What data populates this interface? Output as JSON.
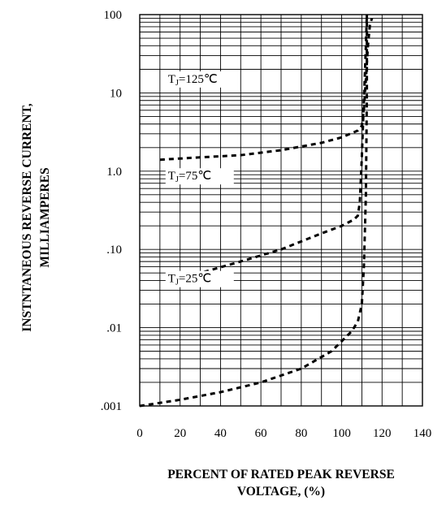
{
  "chart_data": {
    "type": "line",
    "xlabel": [
      "PERCENT OF RATED PEAK REVERSE",
      "VOLTAGE, (%)"
    ],
    "ylabel": [
      "INSTNTANEOUS REVERSE CURRENT,",
      "MILLIAMPERES"
    ],
    "x_ticks": [
      "0",
      "20",
      "40",
      "60",
      "80",
      "100",
      "120",
      "140"
    ],
    "y_ticks": [
      {
        "value": 0.001,
        "label": ".001"
      },
      {
        "value": 0.01,
        "label": ".01"
      },
      {
        "value": 0.1,
        "label": ".10"
      },
      {
        "value": 1,
        "label": "1.0"
      },
      {
        "value": 10,
        "label": "10"
      },
      {
        "value": 100,
        "label": "100"
      }
    ],
    "xlim": [
      0,
      140
    ],
    "ylim": [
      0.001,
      100
    ],
    "yscale": "log",
    "grid": true,
    "series": [
      {
        "name": "TJ=125℃",
        "label_main": "T",
        "label_sub": "J",
        "label_rest": "=125℃",
        "points": [
          [
            10,
            1.4
          ],
          [
            30,
            1.5
          ],
          [
            50,
            1.6
          ],
          [
            70,
            1.85
          ],
          [
            90,
            2.3
          ],
          [
            100,
            2.7
          ],
          [
            108,
            3.3
          ],
          [
            110,
            3.8
          ],
          [
            111,
            6
          ],
          [
            112,
            15
          ],
          [
            113,
            40
          ],
          [
            114,
            75
          ],
          [
            115,
            90
          ]
        ]
      },
      {
        "name": "TJ=75℃",
        "label_main": "T",
        "label_sub": "J",
        "label_rest": "=75℃",
        "points": [
          [
            15,
            0.037
          ],
          [
            30,
            0.05
          ],
          [
            50,
            0.07
          ],
          [
            70,
            0.1
          ],
          [
            90,
            0.16
          ],
          [
            100,
            0.2
          ],
          [
            106,
            0.24
          ],
          [
            108,
            0.27
          ],
          [
            109,
            0.4
          ],
          [
            110,
            1.5
          ],
          [
            111,
            8
          ],
          [
            112,
            40
          ],
          [
            112.5,
            100
          ]
        ]
      },
      {
        "name": "TJ=25℃",
        "label_main": "T",
        "label_sub": "J",
        "label_rest": "=25℃",
        "points": [
          [
            0,
            0.001
          ],
          [
            20,
            0.0012
          ],
          [
            40,
            0.0015
          ],
          [
            60,
            0.002
          ],
          [
            80,
            0.003
          ],
          [
            95,
            0.005
          ],
          [
            105,
            0.009
          ],
          [
            108,
            0.012
          ],
          [
            110,
            0.02
          ],
          [
            111,
            0.06
          ],
          [
            112,
            0.5
          ],
          [
            112.5,
            10
          ],
          [
            112.5,
            100
          ]
        ]
      }
    ]
  }
}
